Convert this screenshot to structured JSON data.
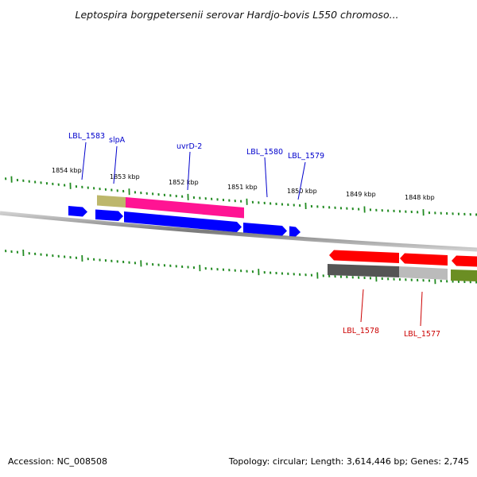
{
  "title": "Leptospira borgpetersenii serovar Hardjo-bovis L550 chromoso...",
  "footer": {
    "accession": "Accession: NC_008508",
    "topology": "Topology: circular; Length: 3,614,446 bp; Genes: 2,745"
  },
  "colors": {
    "backbone": "#808080",
    "tick": "#228b22",
    "forward_label": "#0000cc",
    "reverse_label": "#cc0000",
    "cds_forward": "#0000ff",
    "cds_reverse": "#ff0000",
    "highlight_pink": "#ff1493",
    "feature_khaki": "#bdb76b",
    "feature_dark_gray": "#555555",
    "feature_light_gray": "#bbbbbb",
    "feature_olive": "#6b8e23"
  },
  "ticks_outer": [
    {
      "label": "1854 kbp"
    },
    {
      "label": "1853 kbp"
    },
    {
      "label": "1852 kbp"
    },
    {
      "label": "1851 kbp"
    },
    {
      "label": "1850 kbp"
    },
    {
      "label": "1849 kbp"
    },
    {
      "label": "1848 kbp"
    }
  ],
  "genes_forward": [
    {
      "name": "LBL_1583"
    },
    {
      "name": "slpA"
    },
    {
      "name": "uvrD-2"
    },
    {
      "name": "LBL_1580"
    },
    {
      "name": "LBL_1579"
    }
  ],
  "genes_reverse": [
    {
      "name": "LBL_1578"
    },
    {
      "name": "LBL_1577"
    }
  ]
}
